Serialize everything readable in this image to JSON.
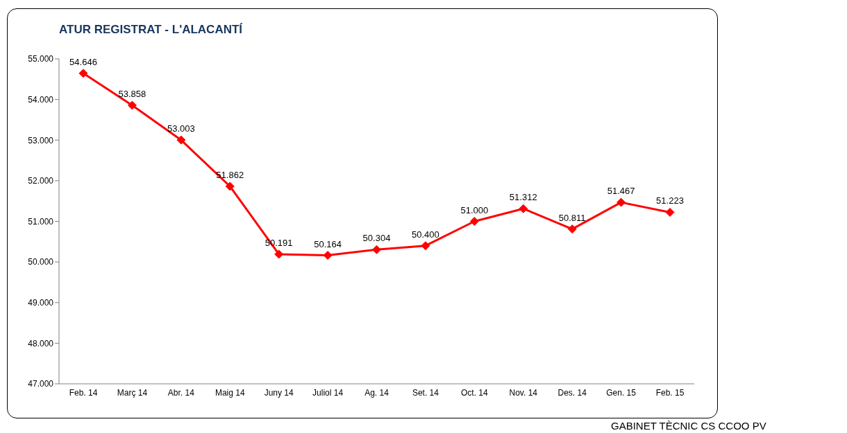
{
  "chart_data": {
    "type": "line",
    "title": "ATUR REGISTRAT - L'ALACANTÍ",
    "categories": [
      "Feb. 14",
      "Març 14",
      "Abr. 14",
      "Maig 14",
      "Juny 14",
      "Juliol 14",
      "Ag. 14",
      "Set. 14",
      "Oct. 14",
      "Nov. 14",
      "Des. 14",
      "Gen. 15",
      "Feb. 15"
    ],
    "series": [
      {
        "color": "#ff0000",
        "values": [
          54646,
          53858,
          53003,
          51862,
          50191,
          50164,
          50304,
          50400,
          51000,
          51312,
          50811,
          51467,
          51223
        ],
        "value_labels": [
          "54.646",
          "53.858",
          "53.003",
          "51.862",
          "50.191",
          "50.164",
          "50.304",
          "50.400",
          "51.000",
          "51.312",
          "50.811",
          "51.467",
          "51.223"
        ]
      }
    ],
    "ylim": [
      47000,
      55000
    ],
    "yticks": [
      {
        "value": 47000,
        "label": "47.000"
      },
      {
        "value": 48000,
        "label": "48.000"
      },
      {
        "value": 49000,
        "label": "49.000"
      },
      {
        "value": 50000,
        "label": "50.000"
      },
      {
        "value": 51000,
        "label": "51.000"
      },
      {
        "value": 52000,
        "label": "52.000"
      },
      {
        "value": 53000,
        "label": "53.000"
      },
      {
        "value": 54000,
        "label": "54.000"
      },
      {
        "value": 55000,
        "label": "55.000"
      }
    ],
    "grid": false,
    "marker": "diamond",
    "line_style": "solid",
    "annotations": [
      "GABINET TÈCNIC CS CCOO PV"
    ]
  }
}
